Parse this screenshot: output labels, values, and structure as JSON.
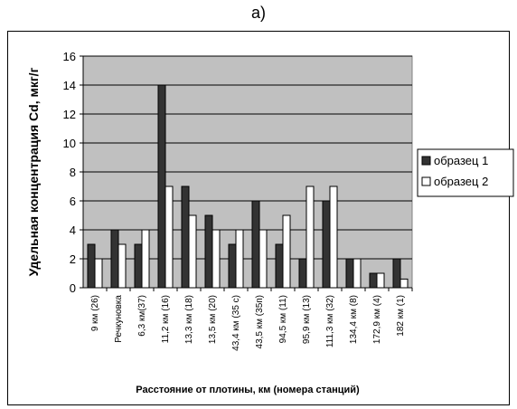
{
  "panel_label": "a)",
  "chart_data": {
    "type": "bar",
    "title": "",
    "xlabel": "Расстояние от плотины, км (номера станций)",
    "ylabel": "Удельная концентрация Cd, мкг/г",
    "ylim": [
      0,
      16
    ],
    "yticks": [
      0,
      2,
      4,
      6,
      8,
      10,
      12,
      14,
      16
    ],
    "grid": true,
    "legend_position": "right",
    "categories": [
      "9 км (26)",
      "Речкуновка",
      "6,3 км(37)",
      "11,2 км (16)",
      "13,3 км (18)",
      "13,5 км (20)",
      "43,4 км (35 с)",
      "43,5 км (35п)",
      "94,5 км (11)",
      "95,9 км (13)",
      "111,3 км (32)",
      "134,4 км (8)",
      "172,9 км (4)",
      "182 км (1)"
    ],
    "series": [
      {
        "name": "образец 1",
        "color": "#333333",
        "values": [
          3,
          4,
          3,
          14,
          7,
          5,
          3,
          6,
          3,
          2,
          6,
          2,
          1,
          2
        ]
      },
      {
        "name": "образец 2",
        "color": "#ffffff",
        "values": [
          2,
          3,
          4,
          7,
          5,
          4,
          4,
          4,
          5,
          7,
          7,
          2,
          1,
          0.6
        ]
      }
    ]
  }
}
